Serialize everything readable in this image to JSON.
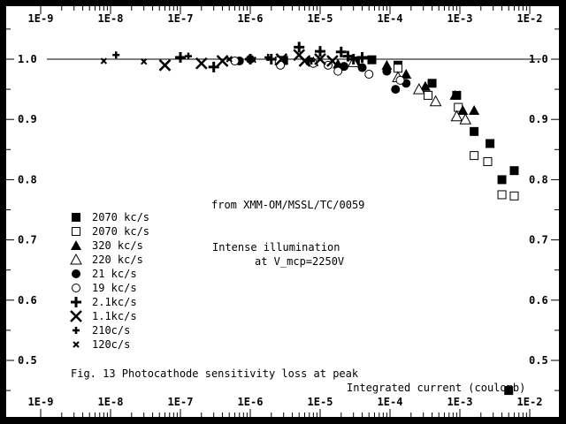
{
  "chart_data": {
    "type": "scatter",
    "title": "Fig. 13  Photocathode sensitivity loss at peak",
    "xlabel": "Integrated current (coulomb)",
    "ylabel": "",
    "x_scale": "log",
    "xlim": [
      1e-09,
      0.01
    ],
    "ylim": [
      0.45,
      1.05
    ],
    "x_ticks": [
      "1E-9",
      "1E-8",
      "1E-7",
      "1E-6",
      "1E-5",
      "1E-4",
      "1E-3",
      "1E-2"
    ],
    "y_ticks": [
      "1.0",
      "0.9",
      "0.8",
      "0.7",
      "0.6",
      "0.5"
    ],
    "reference_line_y": 1.0,
    "annotations": {
      "source": "from  XMM-OM/MSSL/TC/0059",
      "condition_line1": "Intense illumination",
      "condition_line2": "at V_mcp=2250V"
    },
    "series": [
      {
        "name": "2070 kc/s",
        "marker": "filled-square",
        "color": "#000000",
        "points": [
          [
            3e-06,
            0.998
          ],
          [
            3.2e-05,
            0.997
          ],
          [
            5.5e-05,
            0.999
          ],
          [
            0.00013,
            0.99
          ],
          [
            0.0004,
            0.96
          ],
          [
            0.0009,
            0.94
          ],
          [
            0.0016,
            0.88
          ],
          [
            0.0027,
            0.86
          ],
          [
            0.004,
            0.8
          ],
          [
            0.006,
            0.815
          ],
          [
            0.005,
            0.45
          ]
        ]
      },
      {
        "name": "2070 kc/s",
        "marker": "open-square",
        "color": "#000000",
        "points": [
          [
            2.6e-06,
            0.997
          ],
          [
            0.00013,
            0.985
          ],
          [
            0.00035,
            0.94
          ],
          [
            0.00095,
            0.92
          ],
          [
            0.0016,
            0.84
          ],
          [
            0.0025,
            0.83
          ],
          [
            0.004,
            0.775
          ],
          [
            0.006,
            0.773
          ]
        ]
      },
      {
        "name": "320 kc/s",
        "marker": "filled-triangle",
        "color": "#000000",
        "points": [
          [
            8e-06,
            0.996
          ],
          [
            1.8e-05,
            0.992
          ],
          [
            9e-05,
            0.99
          ],
          [
            0.00017,
            0.975
          ],
          [
            0.00032,
            0.955
          ],
          [
            0.00085,
            0.94
          ],
          [
            0.0011,
            0.915
          ],
          [
            0.0016,
            0.915
          ]
        ]
      },
      {
        "name": "220 kc/s",
        "marker": "open-triangle",
        "color": "#000000",
        "points": [
          [
            3e-05,
            0.995
          ],
          [
            0.00013,
            0.97
          ],
          [
            0.00026,
            0.95
          ],
          [
            0.00045,
            0.93
          ],
          [
            0.0009,
            0.905
          ],
          [
            0.0012,
            0.9
          ]
        ]
      },
      {
        "name": "21 kc/s",
        "marker": "filled-circle",
        "color": "#000000",
        "points": [
          [
            7e-07,
            0.997
          ],
          [
            1e-06,
            1.0
          ],
          [
            7e-06,
            0.996
          ],
          [
            2.2e-05,
            0.988
          ],
          [
            4e-05,
            0.986
          ],
          [
            9e-05,
            0.98
          ],
          [
            0.00012,
            0.95
          ],
          [
            0.00017,
            0.96
          ]
        ]
      },
      {
        "name": "19 kc/s",
        "marker": "open-circle",
        "color": "#000000",
        "points": [
          [
            6e-07,
            0.997
          ],
          [
            2.7e-06,
            0.99
          ],
          [
            8e-06,
            0.993
          ],
          [
            1.3e-05,
            0.99
          ],
          [
            1.8e-05,
            0.98
          ],
          [
            5e-05,
            0.975
          ],
          [
            0.00014,
            0.965
          ]
        ]
      },
      {
        "name": "2.1kc/s",
        "marker": "plus",
        "color": "#000000",
        "points": [
          [
            1e-07,
            1.003
          ],
          [
            3e-07,
            0.987
          ],
          [
            1e-06,
            1.0
          ],
          [
            2e-06,
            1.0
          ],
          [
            5e-06,
            1.02
          ],
          [
            1e-05,
            1.013
          ],
          [
            2e-05,
            1.012
          ],
          [
            2.5e-05,
            1.005
          ],
          [
            3e-05,
            1.0
          ],
          [
            4e-05,
            1.003
          ]
        ]
      },
      {
        "name": "1.1kc/s",
        "marker": "x",
        "color": "#000000",
        "points": [
          [
            6e-08,
            0.99
          ],
          [
            2e-07,
            0.993
          ],
          [
            4e-07,
            0.997
          ],
          [
            2.8e-06,
            1.0
          ],
          [
            5e-06,
            1.007
          ],
          [
            6e-06,
            0.997
          ],
          [
            1e-05,
            1.0
          ],
          [
            1.5e-05,
            0.997
          ]
        ]
      },
      {
        "name": "210c/s",
        "marker": "small-plus",
        "color": "#000000",
        "points": [
          [
            1.2e-08,
            1.007
          ],
          [
            1.3e-07,
            1.005
          ],
          [
            1.8e-06,
            1.003
          ],
          [
            7.5e-06,
            0.997
          ]
        ]
      },
      {
        "name": "120c/s",
        "marker": "small-x",
        "color": "#000000",
        "points": [
          [
            8e-09,
            0.997
          ],
          [
            3e-08,
            0.996
          ],
          [
            5e-07,
            1.0
          ],
          [
            1.1e-06,
            0.999
          ]
        ]
      }
    ]
  }
}
